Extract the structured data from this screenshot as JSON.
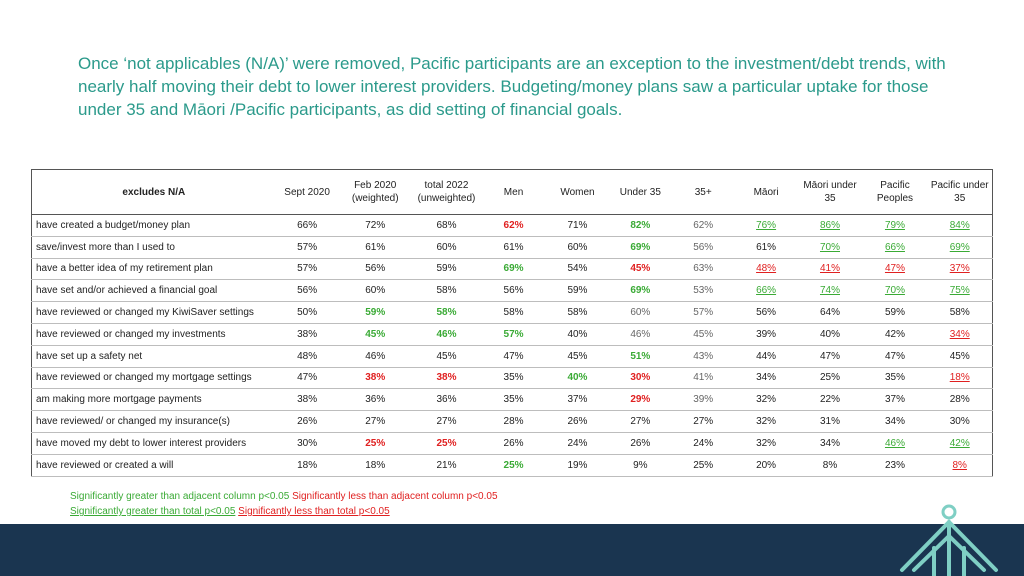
{
  "title": "Once ‘not applicables (N/A)’ were removed, Pacific participants are an exception to the investment/debt trends, with nearly half moving their debt to lower interest providers.  Budgeting/money plans saw a particular uptake for those under 35 and Māori /Pacific participants, as did setting of financial goals.",
  "table": {
    "corner": "excludes N/A",
    "columns": [
      "Sept 2020",
      "Feb 2020 (weighted)",
      "total 2022 (unweighted)",
      "Men",
      "Women",
      "Under 35",
      "35+",
      "Māori",
      "Māori under 35",
      "Pacific Peoples",
      "Pacific under 35"
    ],
    "rows": [
      {
        "label": "have created a budget/money plan",
        "cells": [
          {
            "v": "66%"
          },
          {
            "v": "72%"
          },
          {
            "v": "68%"
          },
          {
            "v": "62%",
            "s": "down-adj"
          },
          {
            "v": "71%"
          },
          {
            "v": "82%",
            "s": "up-adj"
          },
          {
            "v": "62%",
            "s": "dim"
          },
          {
            "v": "76%",
            "s": "up-tot"
          },
          {
            "v": "86%",
            "s": "up-tot"
          },
          {
            "v": "79%",
            "s": "up-tot"
          },
          {
            "v": "84%",
            "s": "up-tot"
          }
        ]
      },
      {
        "label": "save/invest more than I used to",
        "cells": [
          {
            "v": "57%"
          },
          {
            "v": "61%"
          },
          {
            "v": "60%"
          },
          {
            "v": "61%"
          },
          {
            "v": "60%"
          },
          {
            "v": "69%",
            "s": "up-adj"
          },
          {
            "v": "56%",
            "s": "dim"
          },
          {
            "v": "61%"
          },
          {
            "v": "70%",
            "s": "up-tot"
          },
          {
            "v": "66%",
            "s": "up-tot"
          },
          {
            "v": "69%",
            "s": "up-tot"
          }
        ]
      },
      {
        "label": "have a better idea of my retirement plan",
        "cells": [
          {
            "v": "57%"
          },
          {
            "v": "56%"
          },
          {
            "v": "59%"
          },
          {
            "v": "69%",
            "s": "up-adj"
          },
          {
            "v": "54%"
          },
          {
            "v": "45%",
            "s": "down-adj"
          },
          {
            "v": "63%",
            "s": "dim"
          },
          {
            "v": "48%",
            "s": "down-tot"
          },
          {
            "v": "41%",
            "s": "down-tot"
          },
          {
            "v": "47%",
            "s": "down-tot"
          },
          {
            "v": "37%",
            "s": "down-tot"
          }
        ]
      },
      {
        "label": "have set and/or achieved a financial goal",
        "cells": [
          {
            "v": "56%"
          },
          {
            "v": "60%"
          },
          {
            "v": "58%"
          },
          {
            "v": "56%"
          },
          {
            "v": "59%"
          },
          {
            "v": "69%",
            "s": "up-adj"
          },
          {
            "v": "53%",
            "s": "dim"
          },
          {
            "v": "66%",
            "s": "up-tot"
          },
          {
            "v": "74%",
            "s": "up-tot"
          },
          {
            "v": "70%",
            "s": "up-tot"
          },
          {
            "v": "75%",
            "s": "up-tot"
          }
        ]
      },
      {
        "label": "have reviewed or changed my KiwiSaver settings",
        "cells": [
          {
            "v": "50%"
          },
          {
            "v": "59%",
            "s": "up-adj"
          },
          {
            "v": "58%",
            "s": "up-adj"
          },
          {
            "v": "58%"
          },
          {
            "v": "58%"
          },
          {
            "v": "60%",
            "s": "dim"
          },
          {
            "v": "57%",
            "s": "dim"
          },
          {
            "v": "56%"
          },
          {
            "v": "64%"
          },
          {
            "v": "59%"
          },
          {
            "v": "58%"
          }
        ]
      },
      {
        "label": "have reviewed or changed my investments",
        "cells": [
          {
            "v": "38%"
          },
          {
            "v": "45%",
            "s": "up-adj"
          },
          {
            "v": "46%",
            "s": "up-adj"
          },
          {
            "v": "57%",
            "s": "up-adj"
          },
          {
            "v": "40%"
          },
          {
            "v": "46%",
            "s": "dim"
          },
          {
            "v": "45%",
            "s": "dim"
          },
          {
            "v": "39%"
          },
          {
            "v": "40%"
          },
          {
            "v": "42%"
          },
          {
            "v": "34%",
            "s": "down-tot"
          }
        ]
      },
      {
        "label": "have set up a safety net",
        "cells": [
          {
            "v": "48%"
          },
          {
            "v": "46%"
          },
          {
            "v": "45%"
          },
          {
            "v": "47%"
          },
          {
            "v": "45%"
          },
          {
            "v": "51%",
            "s": "up-adj"
          },
          {
            "v": "43%",
            "s": "dim"
          },
          {
            "v": "44%"
          },
          {
            "v": "47%"
          },
          {
            "v": "47%"
          },
          {
            "v": "45%"
          }
        ]
      },
      {
        "label": "have reviewed or changed my mortgage settings",
        "cells": [
          {
            "v": "47%"
          },
          {
            "v": "38%",
            "s": "down-adj"
          },
          {
            "v": "38%",
            "s": "down-adj"
          },
          {
            "v": "35%"
          },
          {
            "v": "40%",
            "s": "up-adj"
          },
          {
            "v": "30%",
            "s": "down-adj"
          },
          {
            "v": "41%",
            "s": "dim"
          },
          {
            "v": "34%"
          },
          {
            "v": "25%"
          },
          {
            "v": "35%"
          },
          {
            "v": "18%",
            "s": "down-tot"
          }
        ]
      },
      {
        "label": "am making more mortgage payments",
        "cells": [
          {
            "v": "38%"
          },
          {
            "v": "36%"
          },
          {
            "v": "36%"
          },
          {
            "v": "35%"
          },
          {
            "v": "37%"
          },
          {
            "v": "29%",
            "s": "down-adj"
          },
          {
            "v": "39%",
            "s": "dim"
          },
          {
            "v": "32%"
          },
          {
            "v": "22%"
          },
          {
            "v": "37%"
          },
          {
            "v": "28%"
          }
        ]
      },
      {
        "label": "have reviewed/ or changed my insurance(s)",
        "cells": [
          {
            "v": "26%"
          },
          {
            "v": "27%"
          },
          {
            "v": "27%"
          },
          {
            "v": "28%"
          },
          {
            "v": "26%"
          },
          {
            "v": "27%"
          },
          {
            "v": "27%"
          },
          {
            "v": "32%"
          },
          {
            "v": "31%"
          },
          {
            "v": "34%"
          },
          {
            "v": "30%"
          }
        ]
      },
      {
        "label": "have moved my debt to lower interest providers",
        "cells": [
          {
            "v": "30%"
          },
          {
            "v": "25%",
            "s": "down-adj"
          },
          {
            "v": "25%",
            "s": "down-adj"
          },
          {
            "v": "26%"
          },
          {
            "v": "24%"
          },
          {
            "v": "26%"
          },
          {
            "v": "24%"
          },
          {
            "v": "32%"
          },
          {
            "v": "34%"
          },
          {
            "v": "46%",
            "s": "up-tot"
          },
          {
            "v": "42%",
            "s": "up-tot"
          }
        ]
      },
      {
        "label": "have reviewed or created a will",
        "cells": [
          {
            "v": "18%"
          },
          {
            "v": "18%"
          },
          {
            "v": "21%"
          },
          {
            "v": "25%",
            "s": "up-adj"
          },
          {
            "v": "19%"
          },
          {
            "v": "9%"
          },
          {
            "v": "25%"
          },
          {
            "v": "20%"
          },
          {
            "v": "8%"
          },
          {
            "v": "23%"
          },
          {
            "v": "8%",
            "s": "down-tot"
          }
        ]
      }
    ]
  },
  "legend": {
    "line1_green": "Significantly greater than adjacent column p<0.05",
    "line1_red": "Significantly less than adjacent column p<0.05",
    "line2_green": "Significantly greater than total p<0.05",
    "line2_red": "Significantly less than total p<0.05"
  },
  "colors": {
    "title": "#2b9a8b",
    "significant_greater": "#3aaa35",
    "significant_less": "#e02020",
    "footer": "#1a3550"
  },
  "icons": {
    "logo": "house-roof-logo-icon"
  }
}
